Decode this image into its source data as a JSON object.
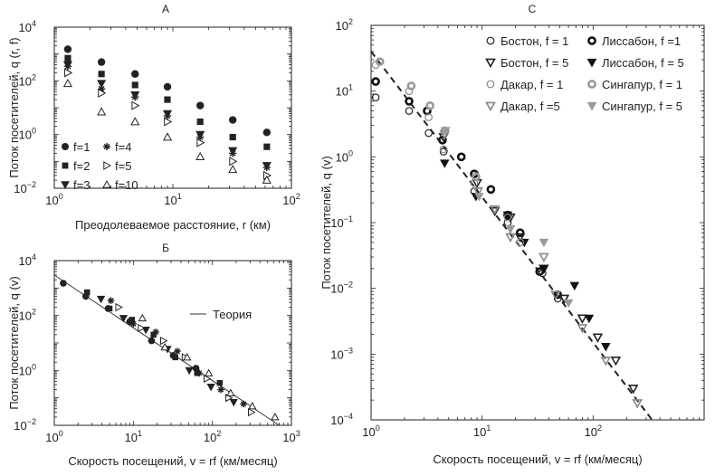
{
  "chart_data": [
    {
      "id": "A",
      "panel_label": "А",
      "type": "scatter",
      "xscale": "log",
      "yscale": "log",
      "xlim": [
        1,
        100
      ],
      "ylim": [
        0.01,
        10000
      ],
      "xlabel": "Преодолеваемое расстояние, r (км)",
      "ylabel": "Поток посетителей, q (r, f)",
      "xticks": [
        {
          "v": 1,
          "b": "10",
          "e": "0"
        },
        {
          "v": 10,
          "b": "10",
          "e": "1"
        },
        {
          "v": 100,
          "b": "10",
          "e": "2"
        }
      ],
      "yticks": [
        {
          "v": 0.01,
          "b": "10",
          "e": "−2"
        },
        {
          "v": 1,
          "b": "10",
          "e": "0"
        },
        {
          "v": 100,
          "b": "10",
          "e": "2"
        },
        {
          "v": 10000,
          "b": "10",
          "e": "4"
        }
      ],
      "legend_position": "bottom-left",
      "legend": [
        {
          "label": "f=1",
          "marker": "circle"
        },
        {
          "label": "f=4",
          "marker": "star"
        },
        {
          "label": "f=2",
          "marker": "square"
        },
        {
          "label": "f=5",
          "marker": "tri-right"
        },
        {
          "label": "f=3",
          "marker": "tri-down"
        },
        {
          "label": "f=10",
          "marker": "tri-up-open"
        }
      ],
      "series": [
        {
          "name": "f=1",
          "marker": "circle",
          "x": [
            1.3,
            2.5,
            4.8,
            9,
            17,
            32,
            62
          ],
          "y": [
            1500,
            500,
            180,
            60,
            12,
            3.5,
            1.2
          ]
        },
        {
          "name": "f=2",
          "marker": "square",
          "x": [
            1.3,
            2.5,
            4.8,
            9,
            17,
            32,
            62
          ],
          "y": [
            700,
            180,
            70,
            20,
            3,
            0.8,
            0.35
          ]
        },
        {
          "name": "f=3",
          "marker": "tri-down",
          "x": [
            1.3,
            2.5,
            4.8,
            9,
            17,
            32,
            62
          ],
          "y": [
            400,
            80,
            30,
            6,
            1,
            0.25,
            0.07
          ]
        },
        {
          "name": "f=4",
          "marker": "star",
          "x": [
            1.3,
            2.5,
            4.8,
            9,
            17,
            32,
            62
          ],
          "y": [
            350,
            50,
            25,
            5,
            0.8,
            0.2,
            0.06
          ]
        },
        {
          "name": "f=5",
          "marker": "tri-right",
          "x": [
            1.3,
            2.5,
            4.8,
            9,
            17,
            32,
            62
          ],
          "y": [
            200,
            35,
            12,
            3,
            0.5,
            0.1,
            0.03
          ]
        },
        {
          "name": "f=10",
          "marker": "tri-up-open",
          "x": [
            1.3,
            2.5,
            4.8,
            9,
            17,
            32,
            62
          ],
          "y": [
            80,
            7,
            3,
            0.8,
            0.15,
            0.05,
            0.02
          ]
        }
      ]
    },
    {
      "id": "B",
      "panel_label": "Б",
      "type": "scatter",
      "xscale": "log",
      "yscale": "log",
      "xlim": [
        1,
        1000
      ],
      "ylim": [
        0.01,
        10000
      ],
      "xlabel": "Скорость посещений, v = rf (км/месяц)",
      "ylabel": "Поток посетителей, q (v)",
      "xticks": [
        {
          "v": 1,
          "b": "10",
          "e": "0"
        },
        {
          "v": 10,
          "b": "10",
          "e": "1"
        },
        {
          "v": 100,
          "b": "10",
          "e": "2"
        },
        {
          "v": 1000,
          "b": "10",
          "e": "3"
        }
      ],
      "yticks": [
        {
          "v": 0.01,
          "b": "10",
          "e": "−2"
        },
        {
          "v": 1,
          "b": "10",
          "e": "0"
        },
        {
          "v": 100,
          "b": "10",
          "e": "2"
        },
        {
          "v": 10000,
          "b": "10",
          "e": "4"
        }
      ],
      "legend_position": "upper-right",
      "legend": [
        {
          "label": "Теория",
          "marker": "line"
        }
      ],
      "theory": {
        "x": [
          1,
          700
        ],
        "y": [
          3000,
          0.01
        ]
      },
      "series": [
        {
          "name": "f=1",
          "marker": "circle",
          "x": [
            1.3,
            2.5,
            4.8,
            9,
            17,
            32,
            62
          ],
          "y": [
            1500,
            500,
            180,
            60,
            12,
            3.5,
            1.2
          ]
        },
        {
          "name": "f=2",
          "marker": "square",
          "x": [
            2.6,
            5,
            9.6,
            18,
            34,
            64,
            124
          ],
          "y": [
            700,
            180,
            70,
            20,
            3,
            0.8,
            0.35
          ]
        },
        {
          "name": "f=3",
          "marker": "tri-down",
          "x": [
            3.9,
            7.5,
            14.4,
            27,
            51,
            96,
            186
          ],
          "y": [
            400,
            80,
            30,
            6,
            1,
            0.25,
            0.07
          ]
        },
        {
          "name": "f=4",
          "marker": "star",
          "x": [
            5.2,
            10,
            19.2,
            36,
            68,
            128,
            248
          ],
          "y": [
            350,
            50,
            25,
            5,
            0.8,
            0.2,
            0.06
          ]
        },
        {
          "name": "f=5",
          "marker": "tri-right",
          "x": [
            6.5,
            12.5,
            24,
            45,
            85,
            160,
            310
          ],
          "y": [
            200,
            35,
            12,
            3,
            0.5,
            0.1,
            0.03
          ]
        },
        {
          "name": "f=10",
          "marker": "tri-up-open",
          "x": [
            13,
            25,
            48,
            90,
            170,
            320,
            620
          ],
          "y": [
            80,
            7,
            3,
            0.8,
            0.15,
            0.05,
            0.02
          ]
        }
      ]
    },
    {
      "id": "C",
      "panel_label": "С",
      "type": "scatter",
      "xscale": "log",
      "yscale": "log",
      "xlim": [
        1,
        1000
      ],
      "ylim": [
        0.0001,
        100
      ],
      "xlabel": "Скорость посещений, v = rf (км/месяц)",
      "ylabel": "Поток посетителей, q (v)",
      "xticks": [
        {
          "v": 1,
          "b": "10",
          "e": "0"
        },
        {
          "v": 10,
          "b": "10",
          "e": "1"
        },
        {
          "v": 100,
          "b": "10",
          "e": "2"
        }
      ],
      "yticks": [
        {
          "v": 0.0001,
          "b": "10",
          "e": "−4"
        },
        {
          "v": 0.001,
          "b": "10",
          "e": "−3"
        },
        {
          "v": 0.01,
          "b": "10",
          "e": "−2"
        },
        {
          "v": 0.1,
          "b": "10",
          "e": "−1"
        },
        {
          "v": 1,
          "b": "10",
          "e": "0"
        },
        {
          "v": 10,
          "b": "10",
          "e": "1"
        },
        {
          "v": 100,
          "b": "10",
          "e": "2"
        }
      ],
      "legend_position": "top-right",
      "legend": [
        {
          "label": "Бостон, f = 1",
          "marker": "ring-thin",
          "color": "#222222"
        },
        {
          "label": "Лиссабон, f =1",
          "marker": "ring-thick",
          "color": "#111111"
        },
        {
          "label": "Бостон, f = 5",
          "marker": "tri-open",
          "color": "#222222"
        },
        {
          "label": "Лиссабон, f = 5",
          "marker": "tri-filled",
          "color": "#111111"
        },
        {
          "label": "Дакар, f = 1",
          "marker": "ring-thin",
          "color": "#888888"
        },
        {
          "label": "Сингапур, f = 1",
          "marker": "ring-thick",
          "color": "#9a9a9a"
        },
        {
          "label": "Дакар, f =5",
          "marker": "tri-open",
          "color": "#888888"
        },
        {
          "label": "Сингапур, f = 5",
          "marker": "tri-filled",
          "color": "#9a9a9a"
        }
      ],
      "fit": {
        "x": [
          1,
          340
        ],
        "y": [
          40,
          0.0001
        ]
      },
      "series": [
        {
          "name": "Бостон, f = 1",
          "marker": "ring-thin",
          "color": "#222222",
          "x": [
            1.1,
            2.2,
            3.3,
            4.5,
            8.5,
            17,
            22,
            35,
            48
          ],
          "y": [
            8,
            5,
            2.3,
            1.2,
            0.3,
            0.1,
            0.05,
            0.017,
            0.007
          ]
        },
        {
          "name": "Лиссабон, f =1",
          "marker": "ring-thick",
          "color": "#111111",
          "x": [
            1.1,
            2.2,
            3.2,
            4.4,
            6.5,
            8.5,
            12,
            17,
            22,
            33,
            48
          ],
          "y": [
            14,
            7,
            5,
            1.8,
            1,
            0.55,
            0.32,
            0.13,
            0.07,
            0.018,
            0.008
          ]
        },
        {
          "name": "Бостон, f = 5",
          "marker": "tri-open",
          "color": "#222222",
          "x": [
            4.5,
            9,
            13,
            18,
            22,
            36,
            55,
            80,
            110,
            160,
            230
          ],
          "y": [
            2,
            0.4,
            0.15,
            0.12,
            0.06,
            0.02,
            0.007,
            0.0035,
            0.0018,
            0.0008,
            0.0003
          ]
        },
        {
          "name": "Лиссабон, f = 5",
          "marker": "tri-filled",
          "color": "#111111",
          "x": [
            4.6,
            8.8,
            17,
            24,
            36,
            68,
            92,
            130
          ],
          "y": [
            0.8,
            0.25,
            0.13,
            0.05,
            0.02,
            0.011,
            0.0035,
            0.0013
          ]
        },
        {
          "name": "Дакар, f = 1",
          "marker": "ring-thin",
          "color": "#888888",
          "x": [
            1.1,
            2.2,
            3.3,
            4.5,
            8.5,
            17,
            22
          ],
          "y": [
            25,
            10,
            4,
            1.3,
            0.4,
            0.12,
            0.05
          ]
        },
        {
          "name": "Сингапур, f = 1",
          "marker": "ring-thick",
          "color": "#9a9a9a",
          "x": [
            1.2,
            2.3,
            3.4,
            4.6,
            8.8
          ],
          "y": [
            28,
            12,
            6,
            2.5,
            0.5
          ]
        },
        {
          "name": "Дакар, f =5",
          "marker": "tri-open",
          "color": "#888888",
          "x": [
            4.6,
            9.2,
            13,
            18,
            36,
            46,
            80,
            130,
            250
          ],
          "y": [
            2.2,
            0.3,
            0.16,
            0.06,
            0.03,
            0.008,
            0.0025,
            0.0008,
            0.00018
          ]
        },
        {
          "name": "Сингапур, f = 5",
          "marker": "tri-filled",
          "color": "#9a9a9a",
          "x": [
            4.7,
            9.4,
            18,
            36,
            60
          ],
          "y": [
            2.5,
            0.25,
            0.08,
            0.05,
            0.006
          ]
        }
      ]
    }
  ]
}
